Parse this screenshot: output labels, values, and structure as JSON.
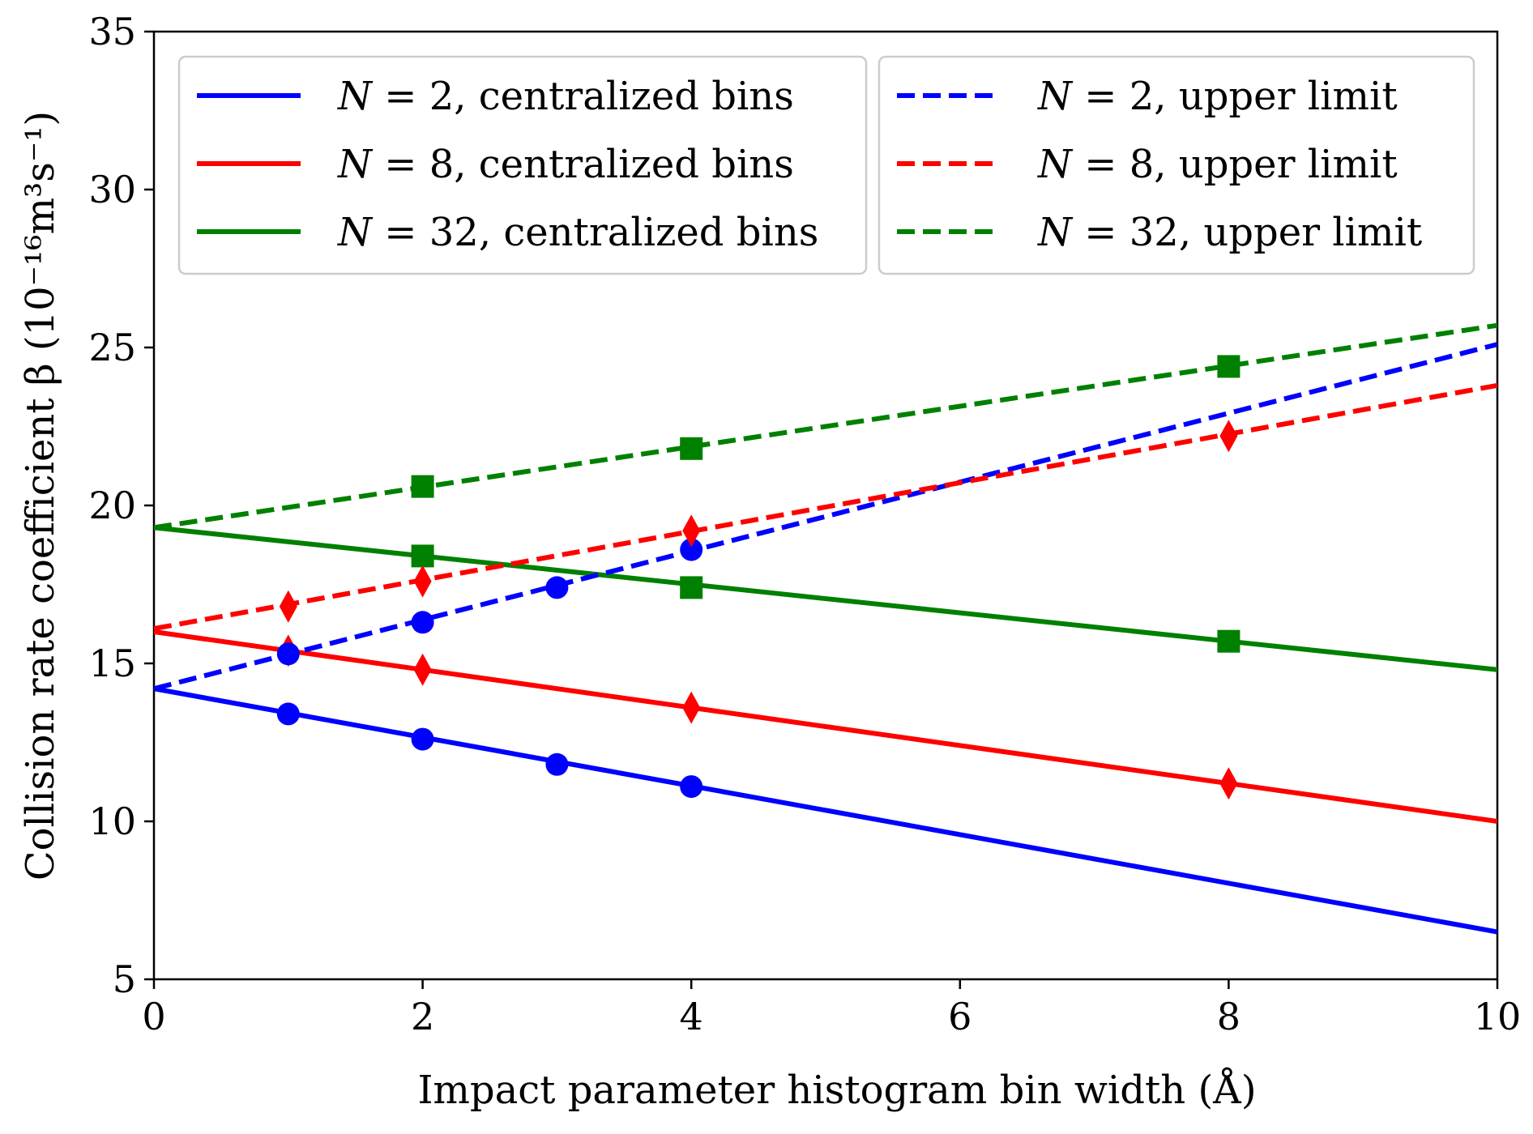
{
  "chart_data": {
    "type": "line",
    "xlabel": "Impact parameter histogram bin width (Å)",
    "ylabel": "Collision rate coefficient β (10⁻¹⁶m³s⁻¹)",
    "xlim": [
      0,
      10
    ],
    "ylim": [
      5,
      35
    ],
    "xticks": [
      "0",
      "2",
      "4",
      "6",
      "8",
      "10"
    ],
    "yticks": [
      "5",
      "10",
      "15",
      "20",
      "25",
      "30",
      "35"
    ],
    "grid": false,
    "legend_placement": "top, two columns",
    "series": [
      {
        "name": "N = 2, centralized bins",
        "name_parts": {
          "var": "N",
          "eq": " = 2, centralized bins"
        },
        "color": "#0000ff",
        "linestyle": "solid",
        "marker": "circle",
        "points": [
          [
            1,
            13.4
          ],
          [
            2,
            12.6
          ],
          [
            3,
            11.8
          ],
          [
            4,
            11.1
          ]
        ],
        "fit": [
          [
            0,
            14.2
          ],
          [
            10,
            6.5
          ]
        ]
      },
      {
        "name": "N = 8, centralized bins",
        "name_parts": {
          "var": "N",
          "eq": " = 8, centralized bins"
        },
        "color": "#ff0000",
        "linestyle": "solid",
        "marker": "diamond",
        "points": [
          [
            1,
            15.4
          ],
          [
            2,
            14.8
          ],
          [
            4,
            13.6
          ],
          [
            8,
            11.2
          ]
        ],
        "fit": [
          [
            0,
            16.0
          ],
          [
            10,
            10.0
          ]
        ]
      },
      {
        "name": "N = 32, centralized bins",
        "name_parts": {
          "var": "N",
          "eq": " = 32, centralized bins"
        },
        "color": "#008000",
        "linestyle": "solid",
        "marker": "square",
        "points": [
          [
            2,
            18.4
          ],
          [
            4,
            17.4
          ],
          [
            8,
            15.7
          ]
        ],
        "fit": [
          [
            0,
            19.3
          ],
          [
            10,
            14.8
          ]
        ]
      },
      {
        "name": "N = 2, upper limit",
        "name_parts": {
          "var": "N",
          "eq": " = 2, upper limit"
        },
        "color": "#0000ff",
        "linestyle": "dashed",
        "marker": "circle",
        "points": [
          [
            1,
            15.3
          ],
          [
            2,
            16.3
          ],
          [
            3,
            17.4
          ],
          [
            4,
            18.6
          ]
        ],
        "fit": [
          [
            0,
            14.2
          ],
          [
            10,
            25.1
          ]
        ]
      },
      {
        "name": "N = 8, upper limit",
        "name_parts": {
          "var": "N",
          "eq": " = 8, upper limit"
        },
        "color": "#ff0000",
        "linestyle": "dashed",
        "marker": "diamond",
        "points": [
          [
            1,
            16.8
          ],
          [
            2,
            17.6
          ],
          [
            4,
            19.2
          ],
          [
            8,
            22.2
          ]
        ],
        "fit": [
          [
            0,
            16.1
          ],
          [
            10,
            23.8
          ]
        ]
      },
      {
        "name": "N = 32, upper limit",
        "name_parts": {
          "var": "N",
          "eq": " = 32, upper limit"
        },
        "color": "#008000",
        "linestyle": "dashed",
        "marker": "square",
        "points": [
          [
            2,
            20.6
          ],
          [
            4,
            21.8
          ],
          [
            8,
            24.4
          ]
        ],
        "fit": [
          [
            0,
            19.3
          ],
          [
            10,
            25.7
          ]
        ]
      }
    ]
  }
}
